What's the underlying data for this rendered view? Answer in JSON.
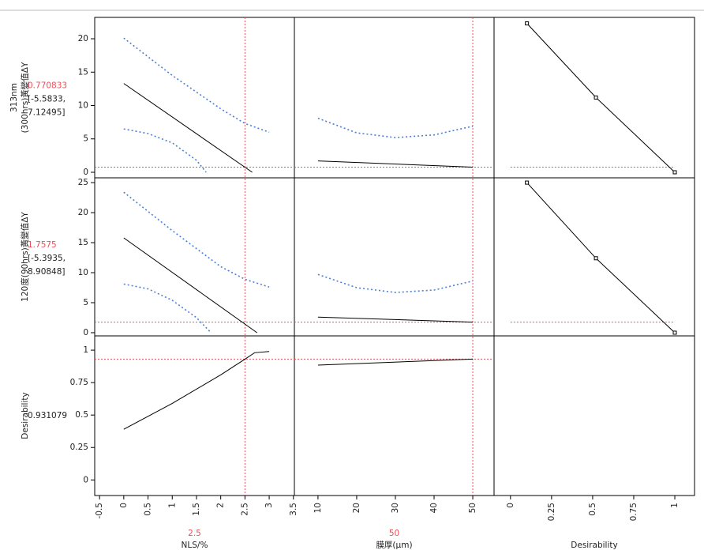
{
  "chart_data": {
    "type": "profiler",
    "columns": [
      {
        "label": "NLS/%",
        "current": 2.5,
        "xlim": [
          -0.6,
          3.52
        ],
        "xticks": [
          -0.5,
          0,
          0.5,
          1,
          1.5,
          2,
          2.5,
          3,
          3.5
        ]
      },
      {
        "label": "膜厚(µm)",
        "current": 50,
        "xlim": [
          3.9,
          55.5
        ],
        "xticks": [
          10,
          20,
          30,
          40,
          50
        ]
      },
      {
        "label": "Desirability",
        "xlim": [
          -0.1,
          1.12
        ],
        "xticks": [
          0,
          0.25,
          0.5,
          0.75,
          1
        ]
      }
    ],
    "rows": [
      {
        "label_lines": [
          "313nm",
          "(300hrs)黃變值ΔY"
        ],
        "current": 0.770833,
        "interval_labels": [
          "[-5.5833,",
          "7.12495]"
        ],
        "ylim": [
          -0.83,
          23.2
        ],
        "yticks": [
          0,
          5,
          10,
          15,
          20
        ],
        "cells": [
          {
            "curves": [
              {
                "color": "#000000",
                "dash": false,
                "x": [
                  0,
                  2.65
                ],
                "y": [
                  13.3,
                  0
                ]
              },
              {
                "color": "#4a7fd8",
                "dash": true,
                "x": [
                  0,
                  1,
                  2,
                  2.5,
                  3
                ],
                "y": [
                  20.1,
                  14.5,
                  9.5,
                  7.3,
                  6.0
                ]
              },
              {
                "color": "#4a7fd8",
                "dash": true,
                "x": [
                  0,
                  0.5,
                  1,
                  1.5,
                  1.7
                ],
                "y": [
                  6.5,
                  5.8,
                  4.4,
                  1.8,
                  0
                ]
              }
            ]
          },
          {
            "curves": [
              {
                "color": "#000000",
                "dash": false,
                "x": [
                  10,
                  50
                ],
                "y": [
                  1.7,
                  0.77
                ]
              },
              {
                "color": "#4a7fd8",
                "dash": true,
                "x": [
                  10,
                  20,
                  30,
                  40,
                  50
                ],
                "y": [
                  8.1,
                  5.9,
                  5.2,
                  5.6,
                  6.9
                ]
              }
            ]
          },
          {
            "curves": [
              {
                "color": "#000000",
                "dash": false,
                "markers": true,
                "x": [
                  0.1,
                  0.52,
                  1
                ],
                "y": [
                  22.3,
                  11.2,
                  0
                ]
              }
            ]
          }
        ]
      },
      {
        "label_lines": [
          "120度(90hrs)黃變值ΔY"
        ],
        "current": 1.7575,
        "interval_labels": [
          "[-5.3935,",
          "8.90848]"
        ],
        "ylim": [
          -0.53,
          25.8
        ],
        "yticks": [
          0,
          5,
          10,
          15,
          20,
          25
        ],
        "cells": [
          {
            "curves": [
              {
                "color": "#000000",
                "dash": false,
                "x": [
                  0,
                  2.75
                ],
                "y": [
                  15.8,
                  0
                ]
              },
              {
                "color": "#4a7fd8",
                "dash": true,
                "x": [
                  0,
                  1,
                  2,
                  2.5,
                  3
                ],
                "y": [
                  23.4,
                  17,
                  11,
                  8.9,
                  7.6
                ]
              },
              {
                "color": "#4a7fd8",
                "dash": true,
                "x": [
                  0,
                  0.5,
                  1,
                  1.5,
                  1.8
                ],
                "y": [
                  8.1,
                  7.3,
                  5.4,
                  2.5,
                  0
                ]
              }
            ]
          },
          {
            "curves": [
              {
                "color": "#000000",
                "dash": false,
                "x": [
                  10,
                  50
                ],
                "y": [
                  2.6,
                  1.76
                ]
              },
              {
                "color": "#4a7fd8",
                "dash": true,
                "x": [
                  10,
                  20,
                  30,
                  40,
                  50
                ],
                "y": [
                  9.7,
                  7.5,
                  6.7,
                  7.1,
                  8.6
                ]
              }
            ]
          },
          {
            "curves": [
              {
                "color": "#000000",
                "dash": false,
                "markers": true,
                "x": [
                  0.1,
                  0.52,
                  1
                ],
                "y": [
                  25,
                  12.4,
                  0
                ]
              }
            ]
          }
        ]
      },
      {
        "label_lines": [
          "Desirability"
        ],
        "current": 0.931079,
        "ylim": [
          -0.12,
          1.11
        ],
        "yticks": [
          0,
          0.25,
          0.5,
          0.75,
          1
        ],
        "cells": [
          {
            "curves": [
              {
                "color": "#000000",
                "dash": false,
                "x": [
                  0,
                  1,
                  2,
                  2.5,
                  2.7,
                  3
                ],
                "y": [
                  0.39,
                  0.59,
                  0.81,
                  0.931,
                  0.98,
                  0.99
                ]
              }
            ]
          },
          {
            "curves": [
              {
                "color": "#000000",
                "dash": false,
                "x": [
                  10,
                  50
                ],
                "y": [
                  0.885,
                  0.931
                ]
              }
            ]
          }
        ]
      }
    ]
  }
}
